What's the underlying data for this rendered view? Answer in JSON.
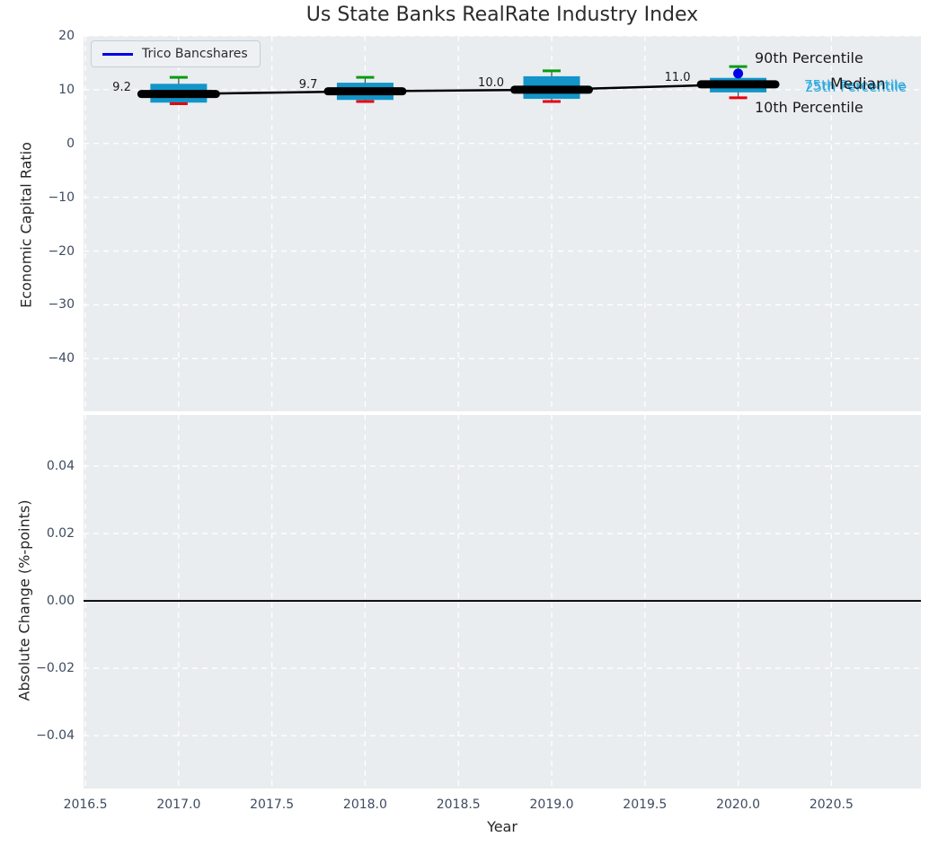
{
  "title": "Us State Banks RealRate Industry Index",
  "legend": {
    "label": "Trico Bancshares",
    "line_color": "#0202e8"
  },
  "annotations": {
    "p90": "90th Percentile",
    "p75": "75th Percentile",
    "p25": "25th Percentile",
    "median": "Median",
    "p10": "10th Percentile"
  },
  "colors": {
    "axes_bg": "#e9edf0",
    "grid": "#ffffff",
    "box_fill": "#1295c8",
    "median_line": "#000000",
    "p90_cap": "#089c10",
    "p10_cap": "#e8000b",
    "whisker": "#4a4a4a",
    "trico_blue": "#0202e8",
    "cyan_annotation": "#2fa9de",
    "zero_line": "#000000"
  },
  "x_axis": {
    "label": "Year",
    "ticks": [
      {
        "label": "2016.5",
        "v": 2016.5
      },
      {
        "label": "2017.0",
        "v": 2017.0
      },
      {
        "label": "2017.5",
        "v": 2017.5
      },
      {
        "label": "2018.0",
        "v": 2018.0
      },
      {
        "label": "2018.5",
        "v": 2018.5
      },
      {
        "label": "2019.0",
        "v": 2019.0
      },
      {
        "label": "2019.5",
        "v": 2019.5
      },
      {
        "label": "2020.0",
        "v": 2020.0
      },
      {
        "label": "2020.5",
        "v": 2020.5
      }
    ]
  },
  "top_axis": {
    "ylabel": "Economic Capital Ratio",
    "ticks": [
      {
        "label": "20",
        "v": 20
      },
      {
        "label": "10",
        "v": 10
      },
      {
        "label": "0",
        "v": 0
      },
      {
        "label": "−10",
        "v": -10
      },
      {
        "label": "−20",
        "v": -20
      },
      {
        "label": "−30",
        "v": -30
      },
      {
        "label": "−40",
        "v": -40
      }
    ]
  },
  "bottom_axis": {
    "ylabel": "Absolute Change (%-points)",
    "ticks": [
      {
        "label": "0.04",
        "v": 0.04
      },
      {
        "label": "0.02",
        "v": 0.02
      },
      {
        "label": "0.00",
        "v": 0.0
      },
      {
        "label": "−0.02",
        "v": -0.02
      },
      {
        "label": "−0.04",
        "v": -0.04
      }
    ]
  },
  "chart_data": [
    {
      "type": "boxplot-timeseries",
      "title": "Us State Banks RealRate Industry Index",
      "xlabel": "Year",
      "ylabel": "Economic Capital Ratio",
      "xlim": [
        2016.49,
        2020.98
      ],
      "ylim": [
        -49.8,
        20
      ],
      "grid": true,
      "legend_position": "upper left",
      "categories": [
        2017,
        2018,
        2019,
        2020
      ],
      "series": [
        {
          "name": "Median",
          "values": [
            9.2,
            9.7,
            10.0,
            11.0
          ]
        },
        {
          "name": "75th Percentile",
          "values": [
            11.1,
            11.3,
            12.5,
            12.2
          ]
        },
        {
          "name": "25th Percentile",
          "values": [
            7.6,
            8.1,
            8.3,
            9.5
          ]
        },
        {
          "name": "90th Percentile",
          "values": [
            12.3,
            12.3,
            13.5,
            14.3
          ]
        },
        {
          "name": "10th Percentile",
          "values": [
            7.4,
            7.8,
            7.8,
            8.5
          ]
        }
      ],
      "median_labels": [
        "9.2",
        "9.7",
        "10.0",
        "11.0"
      ],
      "trico_point": {
        "name": "Trico Bancshares",
        "x": 2020,
        "y": 13.0
      }
    },
    {
      "type": "line",
      "xlabel": "Year",
      "ylabel": "Absolute Change (%-points)",
      "xlim": [
        2016.49,
        2020.98
      ],
      "ylim": [
        -0.0557,
        0.0552
      ],
      "grid": true,
      "zero_line": 0.0,
      "series": []
    }
  ]
}
